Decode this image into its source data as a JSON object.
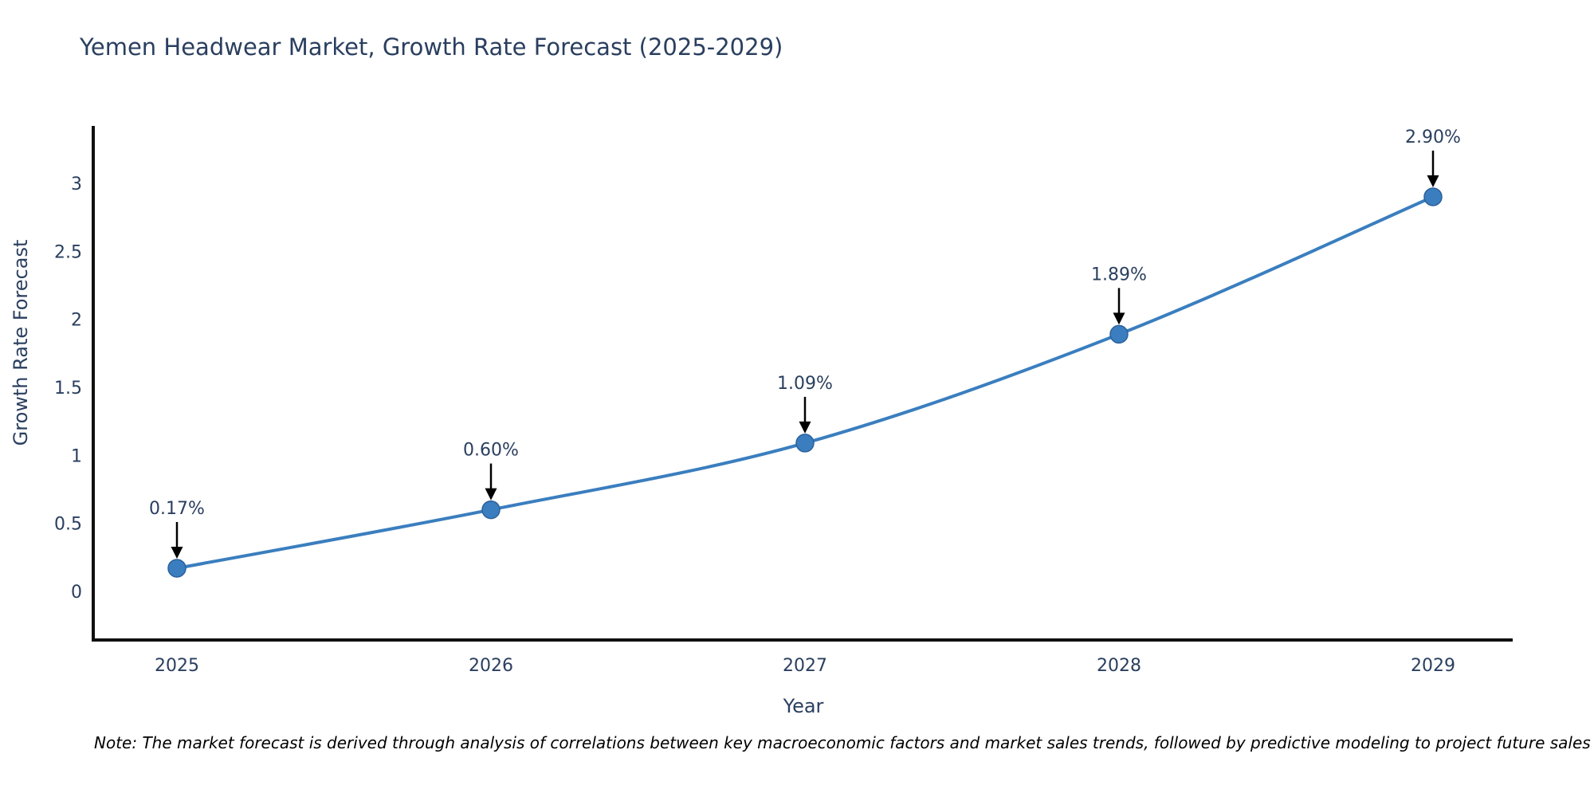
{
  "header": {
    "title": "Yemen Headwear Market, Growth Rate Forecast (2025-2029)"
  },
  "chart_data": {
    "type": "line",
    "title": "Yemen Headwear Market, Growth Rate Forecast (2025-2029)",
    "xlabel": "Year",
    "ylabel": "Growth Rate Forecast",
    "x": [
      2025,
      2026,
      2027,
      2028,
      2029
    ],
    "values": [
      0.17,
      0.6,
      1.09,
      1.89,
      2.9
    ],
    "point_labels": [
      "0.17%",
      "0.60%",
      "1.09%",
      "1.89%",
      "2.90%"
    ],
    "yticks": [
      0,
      0.5,
      1,
      1.5,
      2,
      2.5,
      3
    ],
    "ylim": [
      -0.37,
      3.42
    ],
    "grid": false,
    "legend": "none",
    "line_style": "spline-with-markers",
    "annotation_style": "label-with-down-arrow",
    "colors": {
      "line": "#3a7ebf",
      "marker_fill": "#3a7ebf",
      "marker_edge": "#2c619b",
      "axis_line": "#101010",
      "arrow": "#000000",
      "text": "#2a3f5f"
    }
  },
  "footer": {
    "note": "Note: The market forecast is derived through analysis of correlations between key macroeconomic factors and market sales trends, followed by predictive modeling to project future sales"
  }
}
